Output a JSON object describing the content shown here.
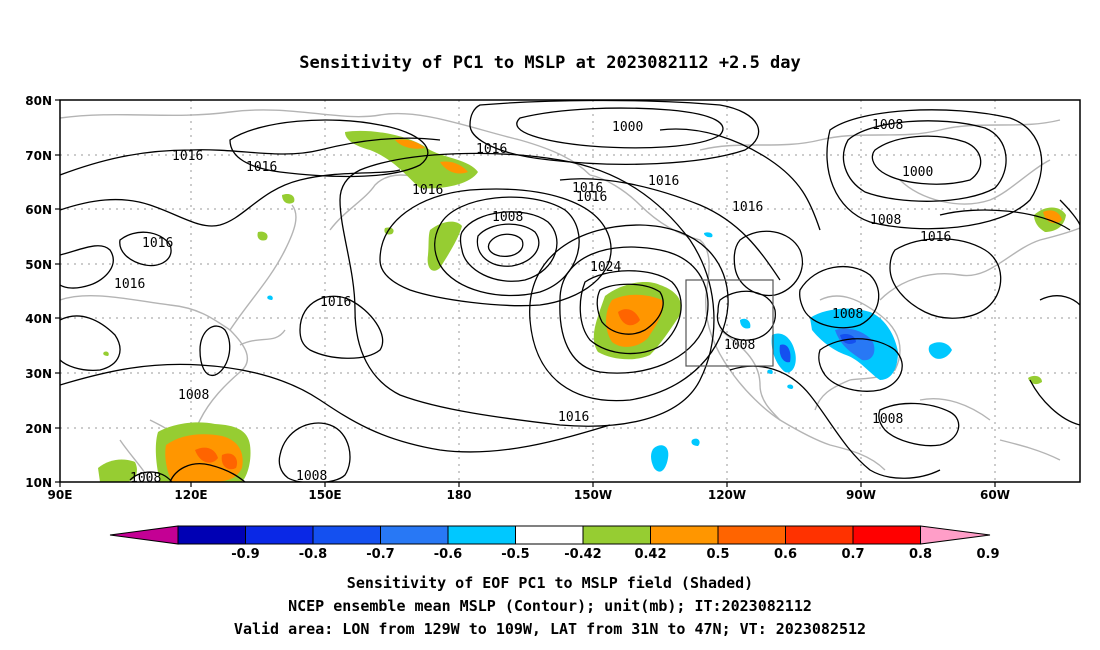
{
  "title": "Sensitivity of PC1 to MSLP at 2023082112 +2.5 day",
  "lat_ticks": [
    "80N",
    "70N",
    "60N",
    "50N",
    "40N",
    "30N",
    "20N",
    "10N"
  ],
  "lon_ticks": [
    "90E",
    "120E",
    "150E",
    "180",
    "150W",
    "120W",
    "90W",
    "60W"
  ],
  "contour_labels": [
    {
      "id": "c1",
      "text": "1000"
    },
    {
      "id": "c2",
      "text": "1008"
    },
    {
      "id": "c3",
      "text": "1016"
    },
    {
      "id": "c4",
      "text": "1016"
    },
    {
      "id": "c5",
      "text": "1016"
    },
    {
      "id": "c6",
      "text": "1016"
    },
    {
      "id": "c7",
      "text": "1016"
    },
    {
      "id": "c8",
      "text": "1016"
    },
    {
      "id": "c9",
      "text": "1016"
    },
    {
      "id": "c10",
      "text": "1016"
    },
    {
      "id": "c11",
      "text": "1016"
    },
    {
      "id": "c12",
      "text": "1016"
    },
    {
      "id": "c13",
      "text": "1008"
    },
    {
      "id": "c14",
      "text": "1000"
    },
    {
      "id": "c15",
      "text": "1008"
    },
    {
      "id": "c16",
      "text": "1016"
    },
    {
      "id": "c17",
      "text": "1024"
    },
    {
      "id": "c18",
      "text": "1016"
    },
    {
      "id": "c19",
      "text": "1008"
    },
    {
      "id": "c20",
      "text": "1008"
    },
    {
      "id": "c21",
      "text": "1008"
    },
    {
      "id": "c22",
      "text": "1016"
    },
    {
      "id": "c23",
      "text": "1008"
    },
    {
      "id": "c24",
      "text": "1008"
    },
    {
      "id": "c25",
      "text": "1008"
    }
  ],
  "colorbar": {
    "labels": [
      "-0.9",
      "-0.8",
      "-0.7",
      "-0.6",
      "-0.5",
      "-0.42",
      "0.42",
      "0.5",
      "0.6",
      "0.7",
      "0.8",
      "0.9"
    ],
    "colors": [
      "#c40094",
      "#0000b4",
      "#0a28e6",
      "#1450f0",
      "#2878f5",
      "#00c8ff",
      "#ffffff",
      "#96cd32",
      "#ff9600",
      "#ff6400",
      "#ff3200",
      "#ff0000",
      "#ff9ec8"
    ]
  },
  "footer": {
    "line1": "Sensitivity of EOF PC1 to MSLP field (Shaded)",
    "line2": "NCEP ensemble mean MSLP (Contour); unit(mb); IT:2023082112",
    "line3": "Valid area: LON from 129W to 109W, LAT from 31N to 47N; VT: 2023082512"
  }
}
